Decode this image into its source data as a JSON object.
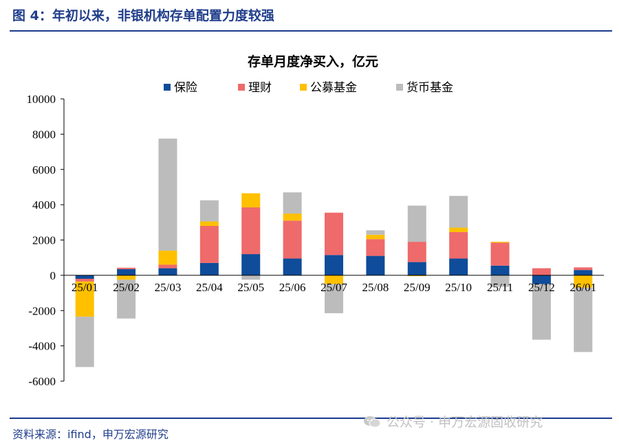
{
  "figure": {
    "title": "图 4：年初以来，非银机构存单配置力度较强",
    "source": "资料来源：ifind，申万宏源研究",
    "watermark": "公众号 · 申万宏源固收研究"
  },
  "colors": {
    "brand": "#1f3d8a",
    "insurance": "#0f4c9a",
    "wealth": "#ef6a6a",
    "public_fund": "#ffc000",
    "money_fund": "#bcbcbc"
  },
  "chart_data": {
    "type": "bar",
    "stacked": true,
    "title": "存单月度净买入，亿元",
    "xlabel": "",
    "ylabel": "",
    "ylim": [
      -6000,
      10000
    ],
    "yticks": [
      10000,
      8000,
      6000,
      4000,
      2000,
      0,
      -2000,
      -4000,
      -6000
    ],
    "ytick_labels": [
      "10000",
      "8000",
      "6000",
      "4000",
      "2000",
      "0",
      "-2000",
      "-4000",
      "-6000"
    ],
    "grid": false,
    "legend_position": "top",
    "categories": [
      "25/01",
      "25/02",
      "25/03",
      "25/04",
      "25/05",
      "25/06",
      "25/07",
      "25/08",
      "25/09",
      "25/10",
      "25/11",
      "25/12",
      "26/01"
    ],
    "series": [
      {
        "name": "保险",
        "color_key": "insurance",
        "values": [
          -200,
          350,
          400,
          700,
          1200,
          950,
          1150,
          1100,
          750,
          950,
          550,
          -500,
          300
        ]
      },
      {
        "name": "理财",
        "color_key": "wealth",
        "values": [
          -150,
          80,
          200,
          2100,
          2650,
          2150,
          2400,
          950,
          1150,
          1500,
          1300,
          400,
          150
        ]
      },
      {
        "name": "公募基金",
        "color_key": "public_fund",
        "values": [
          -2000,
          -250,
          800,
          250,
          800,
          400,
          -500,
          250,
          -50,
          250,
          50,
          0,
          -700
        ]
      },
      {
        "name": "货币基金",
        "color_key": "money_fund",
        "values": [
          -2850,
          -2200,
          6350,
          1200,
          -250,
          1200,
          -1650,
          250,
          2050,
          1800,
          -650,
          -3150,
          -3650
        ]
      }
    ]
  }
}
